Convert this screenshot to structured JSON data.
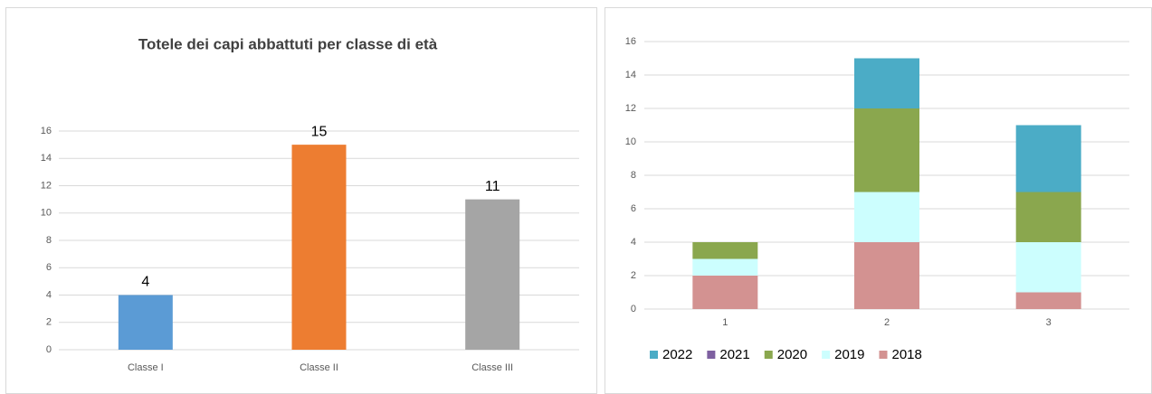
{
  "chart_data": [
    {
      "type": "bar",
      "title": "Totele dei capi abbattuti per classe di età",
      "categories": [
        "Classe I",
        "Classe II",
        "Classe III"
      ],
      "values": [
        4,
        15,
        11
      ],
      "colors": [
        "#5b9bd5",
        "#ed7d31",
        "#a5a5a5"
      ],
      "ylim": [
        0,
        16
      ],
      "yticks": [
        0,
        2,
        4,
        6,
        8,
        10,
        12,
        14,
        16
      ],
      "grid": true
    },
    {
      "type": "stacked_bar",
      "categories": [
        "1",
        "2",
        "3"
      ],
      "series": [
        {
          "name": "2018",
          "color": "#d39291",
          "values": [
            2,
            4,
            1
          ]
        },
        {
          "name": "2019",
          "color": "#ccfefe",
          "values": [
            1,
            3,
            3
          ]
        },
        {
          "name": "2020",
          "color": "#8aa74e",
          "values": [
            1,
            5,
            3
          ]
        },
        {
          "name": "2021",
          "color": "#7e60a0",
          "values": [
            0,
            0,
            0
          ]
        },
        {
          "name": "2022",
          "color": "#4bacc6",
          "values": [
            0,
            3,
            4
          ]
        }
      ],
      "ylim": [
        0,
        16
      ],
      "yticks": [
        0,
        2,
        4,
        6,
        8,
        10,
        12,
        14,
        16
      ],
      "grid": true,
      "legend": "bottom"
    }
  ]
}
